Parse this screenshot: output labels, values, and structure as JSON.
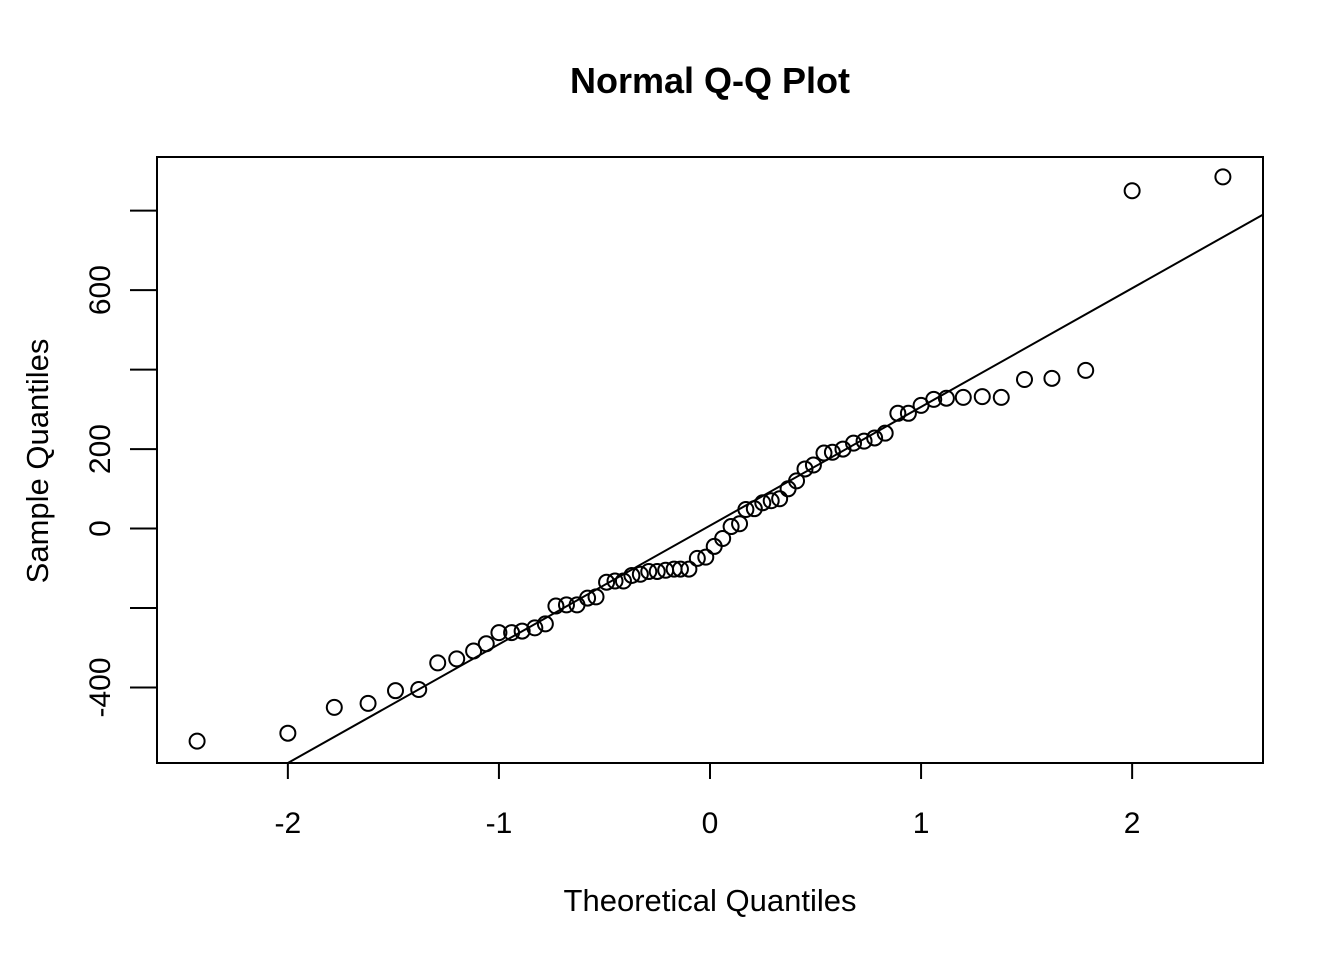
{
  "chart_data": {
    "type": "scatter",
    "title": "Normal Q-Q Plot",
    "xlabel": "Theoretical Quantiles",
    "ylabel": "Sample Quantiles",
    "xlim": [
      -2.62,
      2.62
    ],
    "ylim": [
      -590,
      935
    ],
    "x_ticks": [
      -2,
      -1,
      0,
      1,
      2
    ],
    "x_tick_labels": [
      "-2",
      "-1",
      "0",
      "1",
      "2"
    ],
    "y_ticks": [
      -400,
      -200,
      0,
      200,
      400,
      600,
      800
    ],
    "y_tick_labels": [
      "-400",
      "",
      "0",
      "200",
      "",
      "600",
      ""
    ],
    "grid": false,
    "marker": "open-circle",
    "reference_line": {
      "x": [
        -2.0,
        2.62
      ],
      "y": [
        -590,
        790
      ]
    },
    "series": [
      {
        "x": [
          -2.43,
          -2.0,
          -1.78,
          -1.62,
          -1.49,
          -1.38,
          -1.29,
          -1.2,
          -1.12,
          -1.06,
          -1.0,
          -0.94,
          -0.89,
          -0.83,
          -0.78,
          -0.73,
          -0.68,
          -0.63,
          -0.58,
          -0.54,
          -0.49,
          -0.45,
          -0.41,
          -0.37,
          -0.33,
          -0.29,
          -0.25,
          -0.21,
          -0.17,
          -0.14,
          -0.1,
          -0.06,
          -0.02,
          0.02,
          0.06,
          0.1,
          0.14,
          0.17,
          0.21,
          0.25,
          0.29,
          0.33,
          0.37,
          0.41,
          0.45,
          0.49,
          0.54,
          0.58,
          0.63,
          0.68,
          0.73,
          0.78,
          0.83,
          0.89,
          0.94,
          1.0,
          1.06,
          1.12,
          1.2,
          1.29,
          1.38,
          1.49,
          1.62,
          1.78,
          2.0,
          2.43
        ],
        "y": [
          -535,
          -515,
          -450,
          -440,
          -408,
          -405,
          -338,
          -328,
          -308,
          -290,
          -262,
          -262,
          -258,
          -250,
          -240,
          -195,
          -192,
          -192,
          -175,
          -172,
          -135,
          -132,
          -132,
          -118,
          -115,
          -108,
          -108,
          -105,
          -102,
          -102,
          -102,
          -75,
          -72,
          -45,
          -25,
          5,
          12,
          48,
          50,
          65,
          70,
          75,
          100,
          120,
          150,
          160,
          190,
          192,
          200,
          215,
          220,
          228,
          240,
          290,
          290,
          310,
          325,
          328,
          330,
          332,
          330,
          375,
          378,
          398,
          850,
          885
        ]
      }
    ]
  }
}
